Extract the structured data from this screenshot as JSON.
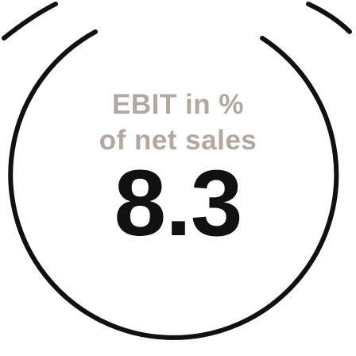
{
  "metric": {
    "label_line_1": "EBIT in %",
    "label_line_2": "of net sales",
    "value": "8.3"
  },
  "colors": {
    "background": "#ffffff",
    "ring": "#111111",
    "label": "#b2a89f",
    "value": "#111111"
  }
}
